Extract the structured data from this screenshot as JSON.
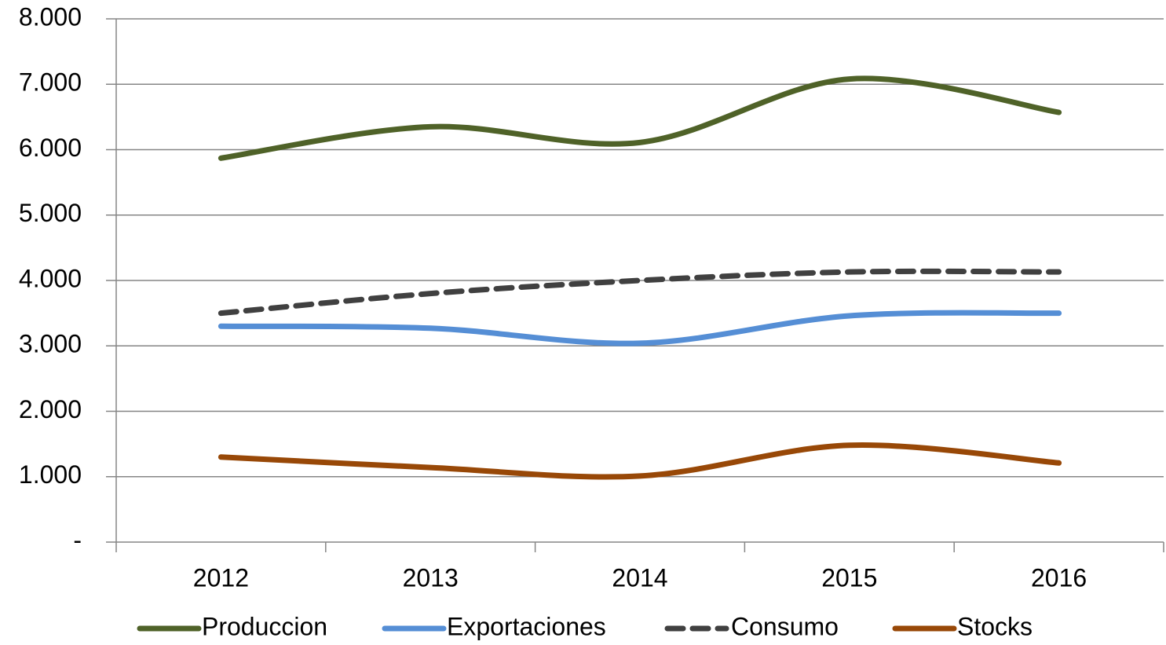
{
  "chart_data": {
    "type": "line",
    "categories": [
      "2012",
      "2013",
      "2014",
      "2015",
      "2016"
    ],
    "series": [
      {
        "name": "Produccion",
        "color": "#4f6228",
        "dash": false,
        "values": [
          5870,
          6350,
          6110,
          7080,
          6570
        ]
      },
      {
        "name": "Exportaciones",
        "color": "#558ed5",
        "dash": false,
        "values": [
          3300,
          3270,
          3040,
          3460,
          3500
        ]
      },
      {
        "name": "Consumo",
        "color": "#404040",
        "dash": true,
        "values": [
          3500,
          3800,
          4000,
          4130,
          4130
        ]
      },
      {
        "name": "Stocks",
        "color": "#984807",
        "dash": false,
        "values": [
          1300,
          1140,
          1010,
          1480,
          1210
        ]
      }
    ],
    "ylim": [
      0,
      8000
    ],
    "yticks": [
      {
        "value": 0,
        "label": "-"
      },
      {
        "value": 1000,
        "label": "1.000"
      },
      {
        "value": 2000,
        "label": "2.000"
      },
      {
        "value": 3000,
        "label": "3.000"
      },
      {
        "value": 4000,
        "label": "4.000"
      },
      {
        "value": 5000,
        "label": "5.000"
      },
      {
        "value": 6000,
        "label": "6.000"
      },
      {
        "value": 7000,
        "label": "7.000"
      },
      {
        "value": 8000,
        "label": "8.000"
      }
    ],
    "grid": true,
    "smooth": true,
    "legend": "bottom"
  }
}
